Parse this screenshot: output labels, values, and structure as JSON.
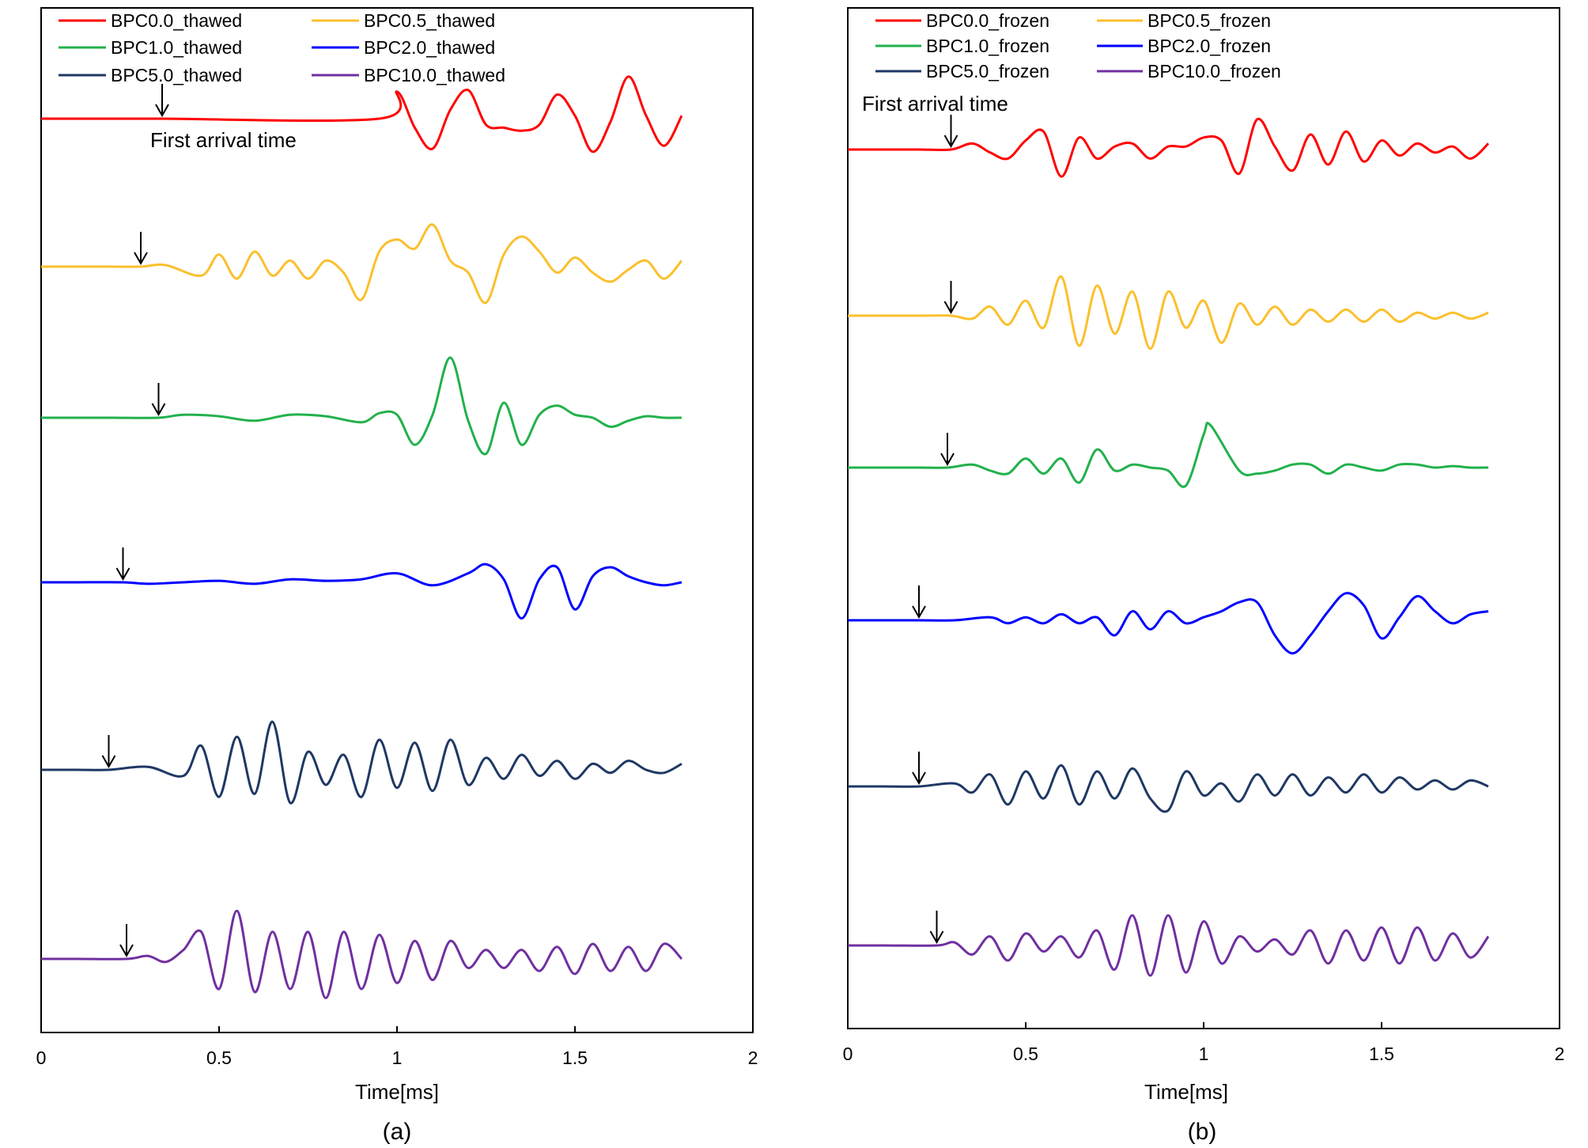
{
  "chart_data": [
    {
      "type": "line",
      "panel_label": "(a)",
      "xlabel": "Time[ms]",
      "xlim": [
        0,
        2
      ],
      "xticks": [
        "0",
        "0.5",
        "1",
        "1.5",
        "2"
      ],
      "y_axis_ticks_shown": false,
      "legend_position": "top-left",
      "annotation": "First arrival time",
      "series": [
        {
          "name": "BPC0.0_thawed",
          "color": "#ff0000",
          "first_arrival_ms": 0.34,
          "x": [
            0,
            0.1,
            0.2,
            0.3,
            0.34,
            0.95,
            1.0,
            1.05,
            1.1,
            1.15,
            1.2,
            1.25,
            1.3,
            1.35,
            1.4,
            1.45,
            1.5,
            1.55,
            1.6,
            1.65,
            1.7,
            1.75,
            1.8
          ],
          "y": [
            0,
            0,
            0,
            0,
            0,
            0,
            0.9,
            -0.3,
            -1.0,
            0.3,
            0.95,
            -0.2,
            -0.3,
            -0.4,
            -0.2,
            0.8,
            0.1,
            -1.1,
            -0.1,
            1.4,
            0.1,
            -0.9,
            0.1
          ]
        },
        {
          "name": "BPC0.5_thawed",
          "color": "#fbc02d",
          "first_arrival_ms": 0.28,
          "x": [
            0,
            0.1,
            0.2,
            0.28,
            0.35,
            0.45,
            0.5,
            0.55,
            0.6,
            0.65,
            0.7,
            0.75,
            0.8,
            0.85,
            0.9,
            0.95,
            1.0,
            1.05,
            1.1,
            1.15,
            1.2,
            1.25,
            1.3,
            1.35,
            1.4,
            1.45,
            1.5,
            1.55,
            1.6,
            1.65,
            1.7,
            1.75,
            1.8
          ],
          "y": [
            0,
            0,
            0,
            0,
            0.05,
            -0.3,
            0.4,
            -0.4,
            0.5,
            -0.3,
            0.2,
            -0.4,
            0.2,
            -0.2,
            -1.1,
            0.5,
            0.9,
            0.6,
            1.4,
            0.2,
            -0.2,
            -1.2,
            0.4,
            1.0,
            0.5,
            -0.2,
            0.3,
            -0.2,
            -0.5,
            -0.1,
            0.2,
            -0.4,
            0.2
          ]
        },
        {
          "name": "BPC1.0_thawed",
          "color": "#22b14c",
          "first_arrival_ms": 0.33,
          "x": [
            0,
            0.1,
            0.2,
            0.33,
            0.4,
            0.5,
            0.6,
            0.7,
            0.8,
            0.9,
            0.95,
            1.0,
            1.05,
            1.1,
            1.15,
            1.2,
            1.25,
            1.3,
            1.35,
            1.4,
            1.45,
            1.5,
            1.55,
            1.6,
            1.65,
            1.7,
            1.75,
            1.8
          ],
          "y": [
            0,
            0,
            0,
            0,
            0.1,
            0.05,
            -0.1,
            0.1,
            0.05,
            -0.15,
            0.15,
            0.1,
            -0.9,
            0.1,
            2.0,
            -0.1,
            -1.2,
            0.5,
            -0.9,
            0.1,
            0.4,
            0.1,
            0,
            -0.3,
            -0.1,
            0.05,
            0,
            0
          ]
        },
        {
          "name": "BPC2.0_thawed",
          "color": "#0000ff",
          "first_arrival_ms": 0.23,
          "x": [
            0,
            0.1,
            0.23,
            0.3,
            0.4,
            0.5,
            0.6,
            0.7,
            0.8,
            0.9,
            1.0,
            1.1,
            1.2,
            1.25,
            1.3,
            1.35,
            1.4,
            1.45,
            1.5,
            1.55,
            1.6,
            1.65,
            1.7,
            1.75,
            1.8
          ],
          "y": [
            0,
            0,
            0,
            -0.05,
            0,
            0.05,
            -0.05,
            0.1,
            0.05,
            0.1,
            0.3,
            -0.1,
            0.3,
            0.6,
            0.1,
            -1.2,
            0.1,
            0.5,
            -0.9,
            0.2,
            0.5,
            0.2,
            0,
            -0.1,
            0
          ]
        },
        {
          "name": "BPC5.0_thawed",
          "color": "#1f3864",
          "first_arrival_ms": 0.19,
          "x": [
            0,
            0.1,
            0.19,
            0.3,
            0.4,
            0.45,
            0.5,
            0.55,
            0.6,
            0.65,
            0.7,
            0.75,
            0.8,
            0.85,
            0.9,
            0.95,
            1.0,
            1.05,
            1.1,
            1.15,
            1.2,
            1.25,
            1.3,
            1.35,
            1.4,
            1.45,
            1.5,
            1.55,
            1.6,
            1.65,
            1.7,
            1.75,
            1.8
          ],
          "y": [
            0,
            0,
            0,
            0.1,
            -0.2,
            0.8,
            -0.9,
            1.1,
            -0.8,
            1.6,
            -1.1,
            0.6,
            -0.5,
            0.5,
            -0.9,
            1.0,
            -0.6,
            0.9,
            -0.7,
            1.0,
            -0.5,
            0.4,
            -0.3,
            0.5,
            -0.2,
            0.3,
            -0.3,
            0.2,
            -0.1,
            0.3,
            0,
            -0.1,
            0.2
          ]
        },
        {
          "name": "BPC10.0_thawed",
          "color": "#7030a0",
          "first_arrival_ms": 0.24,
          "x": [
            0,
            0.1,
            0.24,
            0.3,
            0.35,
            0.4,
            0.45,
            0.5,
            0.55,
            0.6,
            0.65,
            0.7,
            0.75,
            0.8,
            0.85,
            0.9,
            0.95,
            1.0,
            1.05,
            1.1,
            1.15,
            1.2,
            1.25,
            1.3,
            1.35,
            1.4,
            1.45,
            1.5,
            1.55,
            1.6,
            1.65,
            1.7,
            1.75,
            1.8
          ],
          "y": [
            0,
            0,
            0,
            0.1,
            -0.1,
            0.3,
            0.9,
            -1.0,
            1.6,
            -1.1,
            0.9,
            -1.0,
            0.9,
            -1.3,
            0.9,
            -1.0,
            0.8,
            -0.8,
            0.6,
            -0.7,
            0.6,
            -0.3,
            0.3,
            -0.3,
            0.3,
            -0.4,
            0.4,
            -0.5,
            0.5,
            -0.4,
            0.4,
            -0.4,
            0.5,
            0
          ]
        }
      ]
    },
    {
      "type": "line",
      "panel_label": "(b)",
      "xlabel": "Time[ms]",
      "xlim": [
        0,
        2
      ],
      "xticks": [
        "0",
        "0.5",
        "1",
        "1.5",
        "2"
      ],
      "y_axis_ticks_shown": false,
      "legend_position": "top-left",
      "annotation": "First arrival time",
      "series": [
        {
          "name": "BPC0.0_frozen",
          "color": "#ff0000",
          "first_arrival_ms": 0.29,
          "x": [
            0,
            0.1,
            0.2,
            0.29,
            0.35,
            0.4,
            0.45,
            0.5,
            0.55,
            0.6,
            0.65,
            0.7,
            0.75,
            0.8,
            0.85,
            0.9,
            0.95,
            1.0,
            1.05,
            1.1,
            1.15,
            1.2,
            1.25,
            1.3,
            1.35,
            1.4,
            1.45,
            1.5,
            1.55,
            1.6,
            1.65,
            1.7,
            1.75,
            1.8
          ],
          "y": [
            0,
            0,
            0,
            0,
            0.2,
            -0.1,
            -0.3,
            0.3,
            0.6,
            -0.9,
            0.4,
            -0.3,
            0.1,
            0.2,
            -0.3,
            0.1,
            0.1,
            0.4,
            0.3,
            -0.8,
            1.0,
            0.1,
            -0.7,
            0.5,
            -0.5,
            0.6,
            -0.4,
            0.3,
            -0.2,
            0.2,
            -0.1,
            0.1,
            -0.3,
            0.2
          ]
        },
        {
          "name": "BPC0.5_frozen",
          "color": "#fbc02d",
          "first_arrival_ms": 0.29,
          "x": [
            0,
            0.1,
            0.2,
            0.29,
            0.35,
            0.4,
            0.45,
            0.5,
            0.55,
            0.6,
            0.65,
            0.7,
            0.75,
            0.8,
            0.85,
            0.9,
            0.95,
            1.0,
            1.05,
            1.1,
            1.15,
            1.2,
            1.25,
            1.3,
            1.35,
            1.4,
            1.45,
            1.5,
            1.55,
            1.6,
            1.65,
            1.7,
            1.75,
            1.8
          ],
          "y": [
            0,
            0,
            0,
            0,
            -0.1,
            0.3,
            -0.3,
            0.5,
            -0.4,
            1.3,
            -1.0,
            1.0,
            -0.6,
            0.8,
            -1.1,
            0.8,
            -0.4,
            0.5,
            -0.9,
            0.4,
            -0.3,
            0.3,
            -0.3,
            0.2,
            -0.2,
            0.2,
            -0.2,
            0.2,
            -0.2,
            0.1,
            -0.1,
            0.1,
            -0.1,
            0.1
          ]
        },
        {
          "name": "BPC1.0_frozen",
          "color": "#22b14c",
          "first_arrival_ms": 0.28,
          "x": [
            0,
            0.1,
            0.2,
            0.28,
            0.35,
            0.4,
            0.45,
            0.5,
            0.55,
            0.6,
            0.65,
            0.7,
            0.75,
            0.8,
            0.85,
            0.9,
            0.95,
            1.0,
            1.02,
            1.1,
            1.15,
            1.2,
            1.25,
            1.3,
            1.35,
            1.4,
            1.45,
            1.5,
            1.55,
            1.6,
            1.65,
            1.7,
            1.75,
            1.8
          ],
          "y": [
            0,
            0,
            0,
            0,
            0.1,
            -0.1,
            -0.2,
            0.3,
            -0.2,
            0.3,
            -0.5,
            0.6,
            -0.1,
            0.1,
            0,
            -0.1,
            -0.6,
            1.1,
            1.4,
            -0.1,
            -0.2,
            -0.1,
            0.1,
            0.1,
            -0.2,
            0.1,
            0,
            -0.1,
            0.1,
            0.1,
            0,
            0.05,
            0,
            0
          ]
        },
        {
          "name": "BPC2.0_frozen",
          "color": "#0000ff",
          "first_arrival_ms": 0.2,
          "x": [
            0,
            0.1,
            0.2,
            0.3,
            0.4,
            0.45,
            0.5,
            0.55,
            0.6,
            0.65,
            0.7,
            0.75,
            0.8,
            0.85,
            0.9,
            0.95,
            1.0,
            1.05,
            1.1,
            1.15,
            1.2,
            1.25,
            1.3,
            1.35,
            1.4,
            1.45,
            1.5,
            1.55,
            1.6,
            1.65,
            1.7,
            1.75,
            1.8
          ],
          "y": [
            0,
            0,
            0,
            0,
            0.1,
            -0.1,
            0.1,
            -0.1,
            0.2,
            -0.1,
            0.1,
            -0.5,
            0.3,
            -0.3,
            0.3,
            -0.1,
            0.1,
            0.3,
            0.6,
            0.6,
            -0.5,
            -1.1,
            -0.5,
            0.3,
            0.9,
            0.5,
            -0.6,
            0.1,
            0.8,
            0.3,
            -0.1,
            0.2,
            0.3
          ]
        },
        {
          "name": "BPC5.0_frozen",
          "color": "#1f3864",
          "first_arrival_ms": 0.2,
          "x": [
            0,
            0.1,
            0.2,
            0.3,
            0.35,
            0.4,
            0.45,
            0.5,
            0.55,
            0.6,
            0.65,
            0.7,
            0.75,
            0.8,
            0.85,
            0.9,
            0.95,
            1.0,
            1.05,
            1.1,
            1.15,
            1.2,
            1.25,
            1.3,
            1.35,
            1.4,
            1.45,
            1.5,
            1.55,
            1.6,
            1.65,
            1.7,
            1.75,
            1.8
          ],
          "y": [
            0,
            0,
            0,
            0.1,
            -0.2,
            0.4,
            -0.6,
            0.5,
            -0.4,
            0.7,
            -0.6,
            0.5,
            -0.4,
            0.6,
            -0.4,
            -0.8,
            0.5,
            -0.3,
            0.1,
            -0.5,
            0.4,
            -0.3,
            0.4,
            -0.3,
            0.3,
            -0.2,
            0.4,
            -0.2,
            0.3,
            -0.1,
            0.2,
            -0.1,
            0.2,
            0
          ]
        },
        {
          "name": "BPC10.0_frozen",
          "color": "#7030a0",
          "first_arrival_ms": 0.25,
          "x": [
            0,
            0.1,
            0.25,
            0.3,
            0.35,
            0.4,
            0.45,
            0.5,
            0.55,
            0.6,
            0.65,
            0.7,
            0.75,
            0.8,
            0.85,
            0.9,
            0.95,
            1.0,
            1.05,
            1.1,
            1.15,
            1.2,
            1.25,
            1.3,
            1.35,
            1.4,
            1.45,
            1.5,
            1.55,
            1.6,
            1.65,
            1.7,
            1.75,
            1.8
          ],
          "y": [
            0,
            0,
            0,
            0.1,
            -0.3,
            0.3,
            -0.5,
            0.4,
            -0.2,
            0.3,
            -0.4,
            0.5,
            -0.8,
            1.0,
            -1.0,
            1.0,
            -0.9,
            0.8,
            -0.6,
            0.3,
            -0.2,
            0.2,
            -0.3,
            0.5,
            -0.6,
            0.5,
            -0.5,
            0.6,
            -0.6,
            0.6,
            -0.5,
            0.4,
            -0.4,
            0.3
          ]
        }
      ]
    }
  ]
}
